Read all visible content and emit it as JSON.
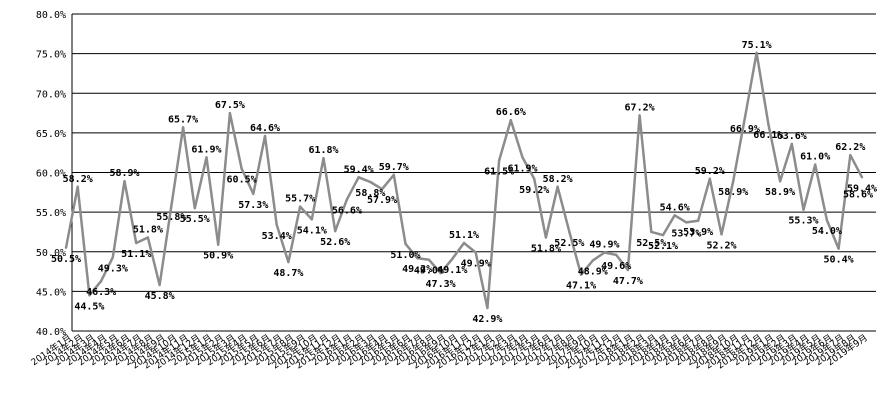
{
  "chart_data": {
    "type": "line",
    "title": "",
    "xlabel": "",
    "ylabel": "",
    "ylim": [
      40,
      80
    ],
    "yticks": [
      "40.0%",
      "45.0%",
      "50.0%",
      "55.0%",
      "60.0%",
      "65.0%",
      "70.0%",
      "75.0%",
      "80.0%"
    ],
    "grid": true,
    "line_color": "#8c8c8c",
    "categories": [
      "2014年1月",
      "2014年2月",
      "2014年3月",
      "2014年4月",
      "2014年5月",
      "2014年6月",
      "2014年7月",
      "2014年8月",
      "2014年9月",
      "2014年10月",
      "2014年11月",
      "2014年12月",
      "2015年1月",
      "2015年2月",
      "2015年3月",
      "2015年4月",
      "2015年5月",
      "2015年6月",
      "2015年7月",
      "2015年8月",
      "2015年9月",
      "2015年10月",
      "2015年11月",
      "2015年12月",
      "2016年1月",
      "2016年2月",
      "2016年3月",
      "2016年4月",
      "2016年5月",
      "2016年6月",
      "2016年7月",
      "2016年8月",
      "2016年9月",
      "2016年10月",
      "2016年11月",
      "2016年12月",
      "2017年1月",
      "2017年2月",
      "2017年3月",
      "2017年4月",
      "2017年5月",
      "2017年6月",
      "2017年7月",
      "2017年8月",
      "2017年9月",
      "2017年10月",
      "2017年11月",
      "2017年12月",
      "2018年1月",
      "2018年2月",
      "2018年3月",
      "2018年4月",
      "2018年5月",
      "2018年6月",
      "2018年7月",
      "2018年8月",
      "2018年9月",
      "2018年10月",
      "2018年11月",
      "2018年12月",
      "2019年1月",
      "2019年2月",
      "2019年3月",
      "2019年4月",
      "2019年5月",
      "2019年6月",
      "2019年7月",
      "2019年8月",
      "2019年9月"
    ],
    "values": [
      50.5,
      58.2,
      44.5,
      46.3,
      49.3,
      58.9,
      51.1,
      51.8,
      45.8,
      55.8,
      65.7,
      55.5,
      61.9,
      50.9,
      67.5,
      60.5,
      57.3,
      64.6,
      53.4,
      48.7,
      55.7,
      54.1,
      61.8,
      52.6,
      56.6,
      59.4,
      58.8,
      57.9,
      59.7,
      51.0,
      49.2,
      49.0,
      47.3,
      49.1,
      51.1,
      49.9,
      42.9,
      61.5,
      66.6,
      61.9,
      59.2,
      51.8,
      58.2,
      52.5,
      47.1,
      48.9,
      49.9,
      49.6,
      47.7,
      67.2,
      52.5,
      52.1,
      54.6,
      53.7,
      53.9,
      59.2,
      52.2,
      58.9,
      66.9,
      75.1,
      66.1,
      58.9,
      63.6,
      55.3,
      61.0,
      54.0,
      50.4,
      62.2,
      59.4
    ],
    "labels": [
      "50.5%",
      "58.2%",
      "44.5%",
      "46.3%",
      "49.3%",
      "58.9%",
      "51.1%",
      "51.8%",
      "45.8%",
      "55.8%",
      "65.7%",
      "55.5%",
      "61.9%",
      "50.9%",
      "67.5%",
      "60.5%",
      "57.3%",
      "64.6%",
      "53.4%",
      "48.7%",
      "55.7%",
      "54.1%",
      "61.8%",
      "52.6%",
      "56.6%",
      "59.4%",
      "58.8%",
      "57.9%",
      "59.7%",
      "51.0%",
      "49.2%",
      "49.0%",
      "47.3%",
      "49.1%",
      "51.1%",
      "49.9%",
      "42.9%",
      "61.5%",
      "66.6%",
      "61.9%",
      "59.2%",
      "51.8%",
      "58.2%",
      "52.5%",
      "47.1%",
      "48.9%",
      "49.9%",
      "49.6%",
      "47.7%",
      "67.2%",
      "52.5%",
      "52.1%",
      "54.6%",
      "53.7%",
      "53.9%",
      "59.2%",
      "52.2%",
      "58.9%",
      "66.9%",
      "75.1%",
      "66.1%",
      "58.9%",
      "63.6%",
      "55.3%",
      "61.0%",
      "54.0%",
      "50.4%",
      "62.2%",
      "59.4%"
    ],
    "extra_labels": [
      "58.6%"
    ]
  }
}
